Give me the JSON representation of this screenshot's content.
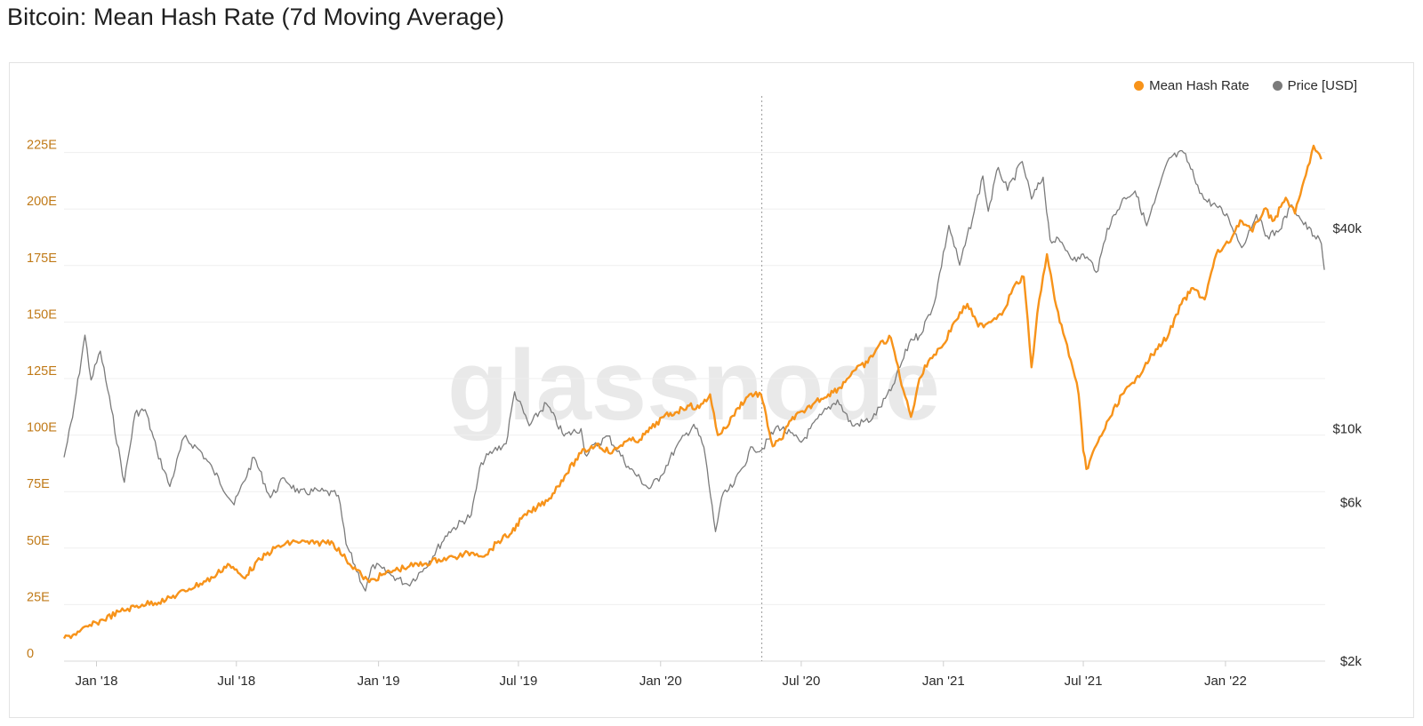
{
  "title": "Bitcoin: Mean Hash Rate (7d Moving Average)",
  "watermark": "glassnode",
  "colors": {
    "hash": "#f7931a",
    "price": "#7b7b7b",
    "grid": "#efefef",
    "left_axis_text": "#c07a18",
    "right_axis_text": "#2a2a2a"
  },
  "legend": {
    "hash_label": "Mean Hash Rate",
    "price_label": "Price [USD]",
    "placement": "top-right"
  },
  "chart_data": {
    "type": "line",
    "title": "Bitcoin: Mean Hash Rate (7d Moving Average)",
    "x_range": [
      "2017-11-20",
      "2022-05-10"
    ],
    "x_ticks": [
      {
        "date": "2018-01-01",
        "label": "Jan '18"
      },
      {
        "date": "2018-07-01",
        "label": "Jul '18"
      },
      {
        "date": "2019-01-01",
        "label": "Jan '19"
      },
      {
        "date": "2019-07-01",
        "label": "Jul '19"
      },
      {
        "date": "2020-01-01",
        "label": "Jan '20"
      },
      {
        "date": "2020-07-01",
        "label": "Jul '20"
      },
      {
        "date": "2021-01-01",
        "label": "Jan '21"
      },
      {
        "date": "2021-07-01",
        "label": "Jul '21"
      },
      {
        "date": "2022-01-01",
        "label": "Jan '22"
      }
    ],
    "y_left": {
      "unit": "EH/s",
      "range": [
        0,
        250
      ],
      "ticks": [
        {
          "v": 0,
          "label": "0"
        },
        {
          "v": 25,
          "label": "25E"
        },
        {
          "v": 50,
          "label": "50E"
        },
        {
          "v": 75,
          "label": "75E"
        },
        {
          "v": 100,
          "label": "100E"
        },
        {
          "v": 125,
          "label": "125E"
        },
        {
          "v": 150,
          "label": "150E"
        },
        {
          "v": 175,
          "label": "175E"
        },
        {
          "v": 200,
          "label": "200E"
        },
        {
          "v": 225,
          "label": "225E"
        }
      ]
    },
    "y_right": {
      "scale": "log",
      "unit": "USD",
      "range": [
        2000,
        100000
      ],
      "ticks": [
        {
          "v": 2000,
          "label": "$2k"
        },
        {
          "v": 6000,
          "label": "$6k"
        },
        {
          "v": 10000,
          "label": "$10k"
        },
        {
          "v": 40000,
          "label": "$40k"
        }
      ]
    },
    "grid": true,
    "marker_line_date": "2020-05-11",
    "series": [
      {
        "name": "Mean Hash Rate",
        "axis": "left",
        "points": [
          [
            "2017-11-20",
            10
          ],
          [
            "2017-12-10",
            13
          ],
          [
            "2018-01-01",
            17
          ],
          [
            "2018-02-01",
            22
          ],
          [
            "2018-03-01",
            25
          ],
          [
            "2018-04-01",
            27
          ],
          [
            "2018-05-01",
            32
          ],
          [
            "2018-06-01",
            37
          ],
          [
            "2018-06-20",
            43
          ],
          [
            "2018-07-10",
            37
          ],
          [
            "2018-08-01",
            45
          ],
          [
            "2018-08-20",
            50
          ],
          [
            "2018-09-15",
            53
          ],
          [
            "2018-10-10",
            52
          ],
          [
            "2018-11-01",
            53
          ],
          [
            "2018-11-20",
            45
          ],
          [
            "2018-12-10",
            38
          ],
          [
            "2018-12-20",
            35
          ],
          [
            "2019-01-05",
            38
          ],
          [
            "2019-01-20",
            40
          ],
          [
            "2019-02-10",
            42
          ],
          [
            "2019-03-01",
            43
          ],
          [
            "2019-03-20",
            45
          ],
          [
            "2019-04-10",
            46
          ],
          [
            "2019-05-01",
            48
          ],
          [
            "2019-05-20",
            47
          ],
          [
            "2019-06-05",
            53
          ],
          [
            "2019-06-20",
            56
          ],
          [
            "2019-07-05",
            63
          ],
          [
            "2019-07-25",
            68
          ],
          [
            "2019-08-10",
            72
          ],
          [
            "2019-08-30",
            82
          ],
          [
            "2019-09-20",
            92
          ],
          [
            "2019-10-10",
            96
          ],
          [
            "2019-10-30",
            92
          ],
          [
            "2019-11-15",
            97
          ],
          [
            "2019-12-05",
            98
          ],
          [
            "2019-12-20",
            103
          ],
          [
            "2020-01-05",
            108
          ],
          [
            "2020-01-20",
            110
          ],
          [
            "2020-02-05",
            113
          ],
          [
            "2020-02-20",
            112
          ],
          [
            "2020-03-05",
            118
          ],
          [
            "2020-03-15",
            100
          ],
          [
            "2020-03-25",
            103
          ],
          [
            "2020-04-10",
            112
          ],
          [
            "2020-04-25",
            118
          ],
          [
            "2020-05-10",
            118
          ],
          [
            "2020-05-25",
            95
          ],
          [
            "2020-06-05",
            98
          ],
          [
            "2020-06-20",
            108
          ],
          [
            "2020-07-05",
            110
          ],
          [
            "2020-07-20",
            115
          ],
          [
            "2020-08-05",
            118
          ],
          [
            "2020-08-20",
            121
          ],
          [
            "2020-09-05",
            128
          ],
          [
            "2020-09-25",
            132
          ],
          [
            "2020-10-10",
            140
          ],
          [
            "2020-10-25",
            143
          ],
          [
            "2020-11-10",
            120
          ],
          [
            "2020-11-20",
            108
          ],
          [
            "2020-12-01",
            125
          ],
          [
            "2020-12-15",
            134
          ],
          [
            "2021-01-01",
            140
          ],
          [
            "2021-01-15",
            150
          ],
          [
            "2021-02-01",
            158
          ],
          [
            "2021-02-15",
            148
          ],
          [
            "2021-03-01",
            150
          ],
          [
            "2021-03-20",
            155
          ],
          [
            "2021-04-01",
            165
          ],
          [
            "2021-04-15",
            170
          ],
          [
            "2021-04-25",
            130
          ],
          [
            "2021-05-05",
            160
          ],
          [
            "2021-05-15",
            180
          ],
          [
            "2021-05-25",
            160
          ],
          [
            "2021-06-05",
            145
          ],
          [
            "2021-06-15",
            133
          ],
          [
            "2021-06-25",
            118
          ],
          [
            "2021-07-01",
            93
          ],
          [
            "2021-07-05",
            85
          ],
          [
            "2021-07-20",
            97
          ],
          [
            "2021-08-05",
            108
          ],
          [
            "2021-08-20",
            118
          ],
          [
            "2021-09-05",
            123
          ],
          [
            "2021-09-20",
            132
          ],
          [
            "2021-10-05",
            138
          ],
          [
            "2021-10-20",
            145
          ],
          [
            "2021-11-05",
            158
          ],
          [
            "2021-11-20",
            165
          ],
          [
            "2021-12-05",
            160
          ],
          [
            "2021-12-20",
            180
          ],
          [
            "2022-01-05",
            185
          ],
          [
            "2022-01-20",
            195
          ],
          [
            "2022-02-05",
            190
          ],
          [
            "2022-02-20",
            200
          ],
          [
            "2022-03-05",
            195
          ],
          [
            "2022-03-20",
            205
          ],
          [
            "2022-04-01",
            198
          ],
          [
            "2022-04-15",
            215
          ],
          [
            "2022-04-25",
            228
          ],
          [
            "2022-05-05",
            222
          ]
        ]
      },
      {
        "name": "Price [USD]",
        "axis": "right",
        "points": [
          [
            "2017-11-20",
            8200
          ],
          [
            "2017-12-01",
            10800
          ],
          [
            "2017-12-17",
            19100
          ],
          [
            "2017-12-25",
            14000
          ],
          [
            "2018-01-06",
            17100
          ],
          [
            "2018-01-20",
            11500
          ],
          [
            "2018-02-06",
            6900
          ],
          [
            "2018-02-20",
            11100
          ],
          [
            "2018-03-05",
            11400
          ],
          [
            "2018-03-20",
            8600
          ],
          [
            "2018-04-06",
            6700
          ],
          [
            "2018-04-24",
            9400
          ],
          [
            "2018-05-15",
            8600
          ],
          [
            "2018-06-01",
            7500
          ],
          [
            "2018-06-28",
            5900
          ],
          [
            "2018-07-24",
            8200
          ],
          [
            "2018-08-14",
            6200
          ],
          [
            "2018-09-01",
            7100
          ],
          [
            "2018-09-20",
            6400
          ],
          [
            "2018-10-15",
            6500
          ],
          [
            "2018-11-10",
            6300
          ],
          [
            "2018-11-20",
            4500
          ],
          [
            "2018-12-15",
            3250
          ],
          [
            "2018-12-25",
            3900
          ],
          [
            "2019-01-20",
            3600
          ],
          [
            "2019-02-08",
            3400
          ],
          [
            "2019-03-01",
            3800
          ],
          [
            "2019-04-02",
            4900
          ],
          [
            "2019-05-01",
            5500
          ],
          [
            "2019-05-14",
            7900
          ],
          [
            "2019-05-30",
            8600
          ],
          [
            "2019-06-15",
            9000
          ],
          [
            "2019-06-26",
            12900
          ],
          [
            "2019-07-15",
            10200
          ],
          [
            "2019-08-06",
            11900
          ],
          [
            "2019-08-29",
            9500
          ],
          [
            "2019-09-20",
            10000
          ],
          [
            "2019-09-25",
            8400
          ],
          [
            "2019-10-25",
            9500
          ],
          [
            "2019-11-20",
            7700
          ],
          [
            "2019-12-17",
            6600
          ],
          [
            "2020-01-01",
            7200
          ],
          [
            "2020-01-20",
            8700
          ],
          [
            "2020-02-13",
            10300
          ],
          [
            "2020-02-26",
            8800
          ],
          [
            "2020-03-12",
            4900
          ],
          [
            "2020-03-20",
            6200
          ],
          [
            "2020-04-05",
            6800
          ],
          [
            "2020-04-29",
            8800
          ],
          [
            "2020-05-10",
            8600
          ],
          [
            "2020-06-01",
            10200
          ],
          [
            "2020-07-01",
            9100
          ],
          [
            "2020-07-27",
            11000
          ],
          [
            "2020-08-17",
            12200
          ],
          [
            "2020-09-05",
            10200
          ],
          [
            "2020-10-01",
            10700
          ],
          [
            "2020-10-25",
            13000
          ],
          [
            "2020-11-20",
            18600
          ],
          [
            "2020-12-01",
            19000
          ],
          [
            "2020-12-20",
            23800
          ],
          [
            "2021-01-08",
            40800
          ],
          [
            "2021-01-22",
            31000
          ],
          [
            "2021-02-10",
            45000
          ],
          [
            "2021-02-21",
            57500
          ],
          [
            "2021-02-28",
            45000
          ],
          [
            "2021-03-13",
            61000
          ],
          [
            "2021-03-25",
            52000
          ],
          [
            "2021-04-13",
            63500
          ],
          [
            "2021-04-25",
            49000
          ],
          [
            "2021-05-10",
            57000
          ],
          [
            "2021-05-19",
            37000
          ],
          [
            "2021-06-01",
            36500
          ],
          [
            "2021-06-22",
            31800
          ],
          [
            "2021-07-01",
            33500
          ],
          [
            "2021-07-20",
            29800
          ],
          [
            "2021-08-01",
            40000
          ],
          [
            "2021-08-23",
            49500
          ],
          [
            "2021-09-06",
            51800
          ],
          [
            "2021-09-21",
            40700
          ],
          [
            "2021-10-01",
            47700
          ],
          [
            "2021-10-20",
            65000
          ],
          [
            "2021-11-08",
            67500
          ],
          [
            "2021-11-26",
            54000
          ],
          [
            "2021-12-04",
            49000
          ],
          [
            "2021-12-20",
            46700
          ],
          [
            "2022-01-05",
            43000
          ],
          [
            "2022-01-22",
            35000
          ],
          [
            "2022-02-10",
            44000
          ],
          [
            "2022-02-24",
            38000
          ],
          [
            "2022-03-10",
            39000
          ],
          [
            "2022-03-28",
            47000
          ],
          [
            "2022-04-10",
            42000
          ],
          [
            "2022-04-26",
            38000
          ],
          [
            "2022-05-05",
            36000
          ],
          [
            "2022-05-09",
            30000
          ]
        ]
      }
    ]
  }
}
